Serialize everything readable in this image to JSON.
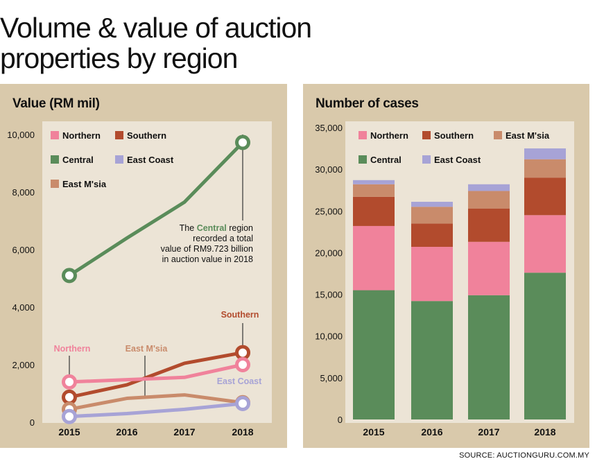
{
  "title": "Volume & value of auction properties by region",
  "source": "SOURCE: AUCTIONGURU.COM.MY",
  "colors": {
    "Northern": "#f0829b",
    "Southern": "#b24b2d",
    "Central": "#5a8c5a",
    "East Coast": "#a7a3d6",
    "East M'sia": "#c98b6b",
    "panel": "#d9c9ab",
    "plot": "#ece4d6"
  },
  "left_panel": {
    "title": "Value (RM mil)"
  },
  "right_panel": {
    "title": "Number of cases"
  },
  "chart_data": [
    {
      "type": "line",
      "title": "Value (RM mil)",
      "x": [
        "2015",
        "2016",
        "2017",
        "2018"
      ],
      "ylim": [
        0,
        10000
      ],
      "yticks": [
        0,
        2000,
        4000,
        6000,
        8000,
        10000
      ],
      "ytick_labels": [
        "0",
        "2,000",
        "4,000",
        "6,000",
        "8,000",
        "10,000"
      ],
      "legend": [
        "Northern",
        "Southern",
        "Central",
        "East Coast",
        "East M'sia"
      ],
      "legend_placement": "top-left",
      "series": [
        {
          "name": "Central",
          "values": [
            5100,
            6400,
            7650,
            9723
          ]
        },
        {
          "name": "Southern",
          "values": [
            870,
            1300,
            2050,
            2420
          ]
        },
        {
          "name": "Northern",
          "values": [
            1400,
            1480,
            1560,
            2000
          ]
        },
        {
          "name": "East M'sia",
          "values": [
            450,
            830,
            950,
            680
          ]
        },
        {
          "name": "East Coast",
          "values": [
            200,
            300,
            450,
            650
          ]
        }
      ],
      "annotations": {
        "central": [
          "The Central region",
          "recorded a total",
          "value of RM9.723 billion",
          "in auction value in 2018"
        ],
        "central_highlight": "Central",
        "northern": "Northern",
        "southern": "Southern",
        "east_msia": "East M'sia",
        "east_coast": "East Coast"
      }
    },
    {
      "type": "bar",
      "stacked": true,
      "title": "Number of cases",
      "categories": [
        "2015",
        "2016",
        "2017",
        "2018"
      ],
      "ylim": [
        0,
        35000
      ],
      "yticks": [
        0,
        5000,
        10000,
        15000,
        20000,
        25000,
        30000,
        35000
      ],
      "ytick_labels": [
        "0",
        "5,000",
        "10,000",
        "15,000",
        "20,000",
        "25,000",
        "30,000",
        "35,000"
      ],
      "legend": [
        "Northern",
        "Southern",
        "East M'sia",
        "Central",
        "East Coast"
      ],
      "legend_placement": "top-left",
      "series": [
        {
          "name": "Central",
          "values": [
            15500,
            14200,
            14900,
            17600
          ]
        },
        {
          "name": "Northern",
          "values": [
            7700,
            6500,
            6400,
            6900
          ]
        },
        {
          "name": "Southern",
          "values": [
            3500,
            2800,
            4000,
            4500
          ]
        },
        {
          "name": "East M'sia",
          "values": [
            1500,
            2000,
            2100,
            2200
          ]
        },
        {
          "name": "East Coast",
          "values": [
            500,
            600,
            800,
            1300
          ]
        }
      ]
    }
  ]
}
